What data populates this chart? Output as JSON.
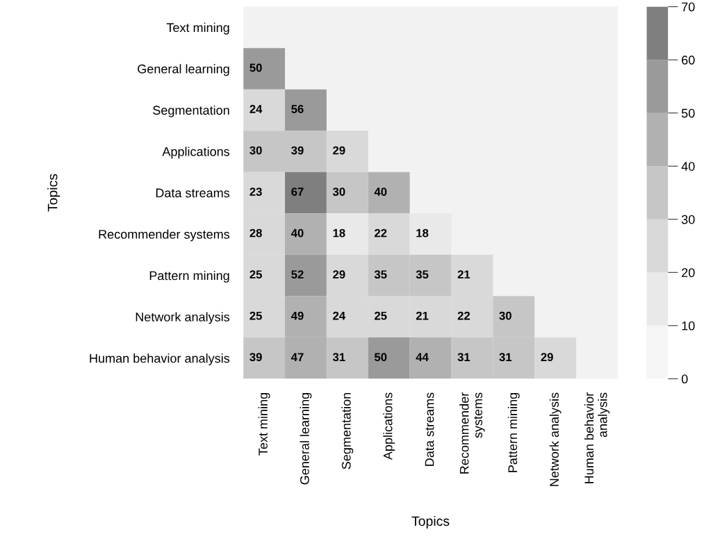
{
  "chart_data": {
    "type": "heatmap",
    "xlabel": "Topics",
    "ylabel": "Topics",
    "categories": [
      "Text mining",
      "General learning",
      "Segmentation",
      "Applications",
      "Data streams",
      "Recommender\nsystems",
      "Pattern mining",
      "Network analysis",
      "Human behavior\nanalysis"
    ],
    "y_categories": [
      "Text mining",
      "General learning",
      "Segmentation",
      "Applications",
      "Data streams",
      "Recommender systems",
      "Pattern mining",
      "Network analysis",
      "Human behavior analysis"
    ],
    "cells": [
      [
        null,
        null,
        null,
        null,
        null,
        null,
        null,
        null,
        null
      ],
      [
        50,
        null,
        null,
        null,
        null,
        null,
        null,
        null,
        null
      ],
      [
        24,
        56,
        null,
        null,
        null,
        null,
        null,
        null,
        null
      ],
      [
        30,
        39,
        29,
        null,
        null,
        null,
        null,
        null,
        null
      ],
      [
        23,
        67,
        30,
        40,
        null,
        null,
        null,
        null,
        null
      ],
      [
        28,
        40,
        18,
        22,
        18,
        null,
        null,
        null,
        null
      ],
      [
        25,
        52,
        29,
        35,
        35,
        21,
        null,
        null,
        null
      ],
      [
        25,
        49,
        24,
        25,
        21,
        22,
        30,
        null,
        null
      ],
      [
        39,
        47,
        31,
        50,
        44,
        31,
        31,
        29,
        null
      ]
    ],
    "colors": [
      "#f5f5f5",
      "#e9e9e9",
      "#d9d9d9",
      "#c6c6c6",
      "#b1b1b1",
      "#9a9a9a",
      "#7f7f7f"
    ],
    "clim": [
      0,
      70
    ],
    "cticks": [
      0,
      10,
      20,
      30,
      40,
      50,
      60,
      70
    ],
    "data_labels": true
  }
}
